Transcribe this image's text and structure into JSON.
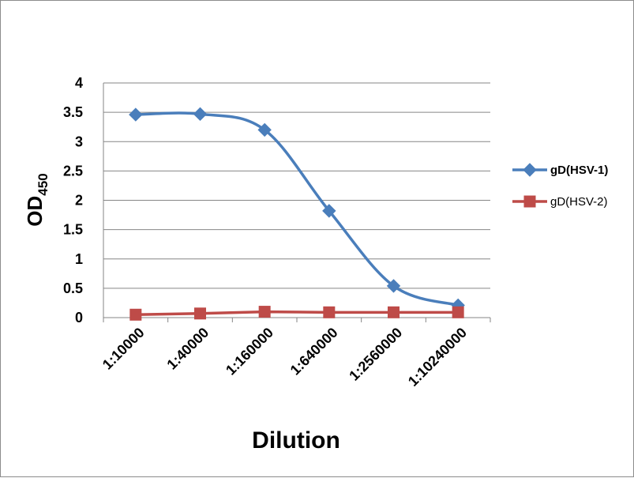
{
  "chart_data": {
    "type": "line",
    "title": "",
    "xlabel": "Dilution",
    "ylabel": {
      "base": "OD",
      "subscript": "450"
    },
    "categories": [
      "1:10000",
      "1:40000",
      "1:160000",
      "1:640000",
      "1:2560000",
      "1:10240000"
    ],
    "ylim": [
      0,
      4
    ],
    "yticks": [
      "0",
      "0.5",
      "1",
      "1.5",
      "2",
      "2.5",
      "3",
      "3.5",
      "4"
    ],
    "grid": true,
    "legend_position": "right",
    "series": [
      {
        "name": "gD(HSV-1)",
        "values": [
          3.46,
          3.47,
          3.2,
          1.82,
          0.54,
          0.21
        ],
        "color": "#4a7ebb",
        "marker": "diamond",
        "smooth": true,
        "legend_bold": true
      },
      {
        "name": "gD(HSV-2)",
        "values": [
          0.05,
          0.07,
          0.1,
          0.09,
          0.09,
          0.09
        ],
        "color": "#be4b48",
        "marker": "square",
        "smooth": false,
        "legend_bold": false
      }
    ]
  }
}
